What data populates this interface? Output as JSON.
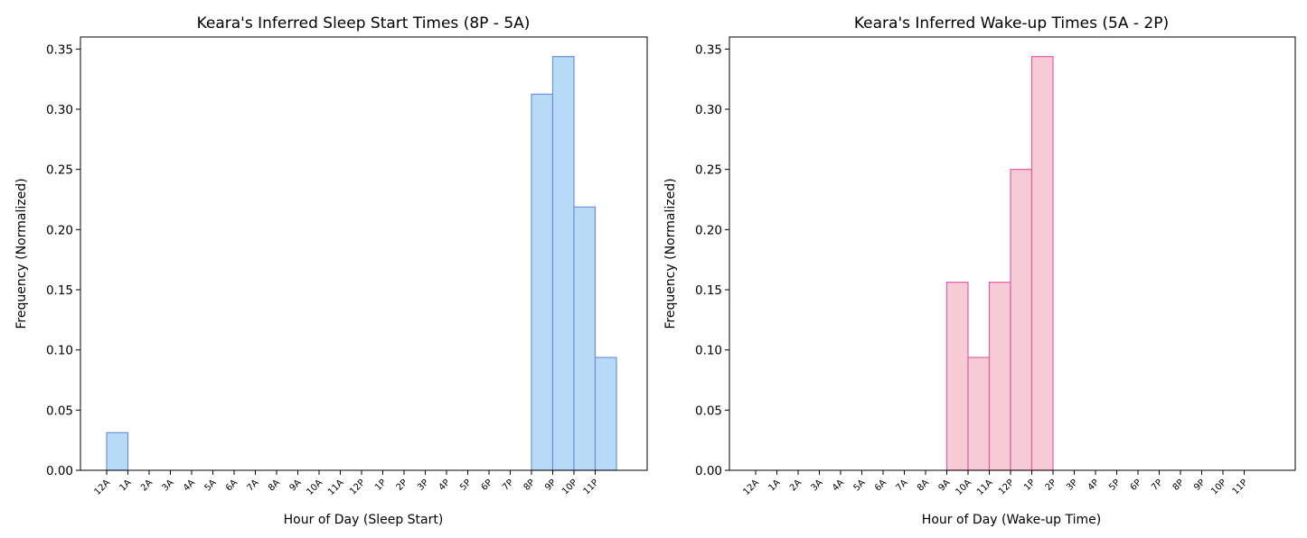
{
  "chart_data": [
    {
      "type": "bar",
      "title": "Keara's Inferred Sleep Start Times (8P - 5A)",
      "xlabel": "Hour of Day (Sleep Start)",
      "ylabel": "Frequency (Normalized)",
      "categories": [
        "12A",
        "1A",
        "2A",
        "3A",
        "4A",
        "5A",
        "6A",
        "7A",
        "8A",
        "9A",
        "10A",
        "11A",
        "12P",
        "1P",
        "2P",
        "3P",
        "4P",
        "5P",
        "6P",
        "7P",
        "8P",
        "9P",
        "10P",
        "11P"
      ],
      "values": [
        0.03125,
        0,
        0,
        0,
        0,
        0,
        0,
        0,
        0,
        0,
        0,
        0,
        0,
        0,
        0,
        0,
        0,
        0,
        0,
        0,
        0.3125,
        0.34375,
        0.21875,
        0.09375
      ],
      "ylim": [
        0,
        0.36
      ],
      "yticks": [
        "0.00",
        "0.05",
        "0.10",
        "0.15",
        "0.20",
        "0.25",
        "0.30",
        "0.35"
      ],
      "fill_color": "#b7dbf6",
      "edge_color": "#6d8fe0"
    },
    {
      "type": "bar",
      "title": "Keara's Inferred Wake-up Times (5A - 2P)",
      "xlabel": "Hour of Day (Wake-up Time)",
      "ylabel": "Frequency (Normalized)",
      "categories": [
        "12A",
        "1A",
        "2A",
        "3A",
        "4A",
        "5A",
        "6A",
        "7A",
        "8A",
        "9A",
        "10A",
        "11A",
        "12P",
        "1P",
        "2P",
        "3P",
        "4P",
        "5P",
        "6P",
        "7P",
        "8P",
        "9P",
        "10P",
        "11P"
      ],
      "values": [
        0,
        0,
        0,
        0,
        0,
        0,
        0,
        0,
        0,
        0.15625,
        0.09375,
        0.15625,
        0.25,
        0.34375,
        0,
        0,
        0,
        0,
        0,
        0,
        0,
        0,
        0,
        0
      ],
      "ylim": [
        0,
        0.36
      ],
      "yticks": [
        "0.00",
        "0.05",
        "0.10",
        "0.15",
        "0.20",
        "0.25",
        "0.30",
        "0.35"
      ],
      "fill_color": "#f6cbd5",
      "edge_color": "#e55ea2"
    }
  ]
}
